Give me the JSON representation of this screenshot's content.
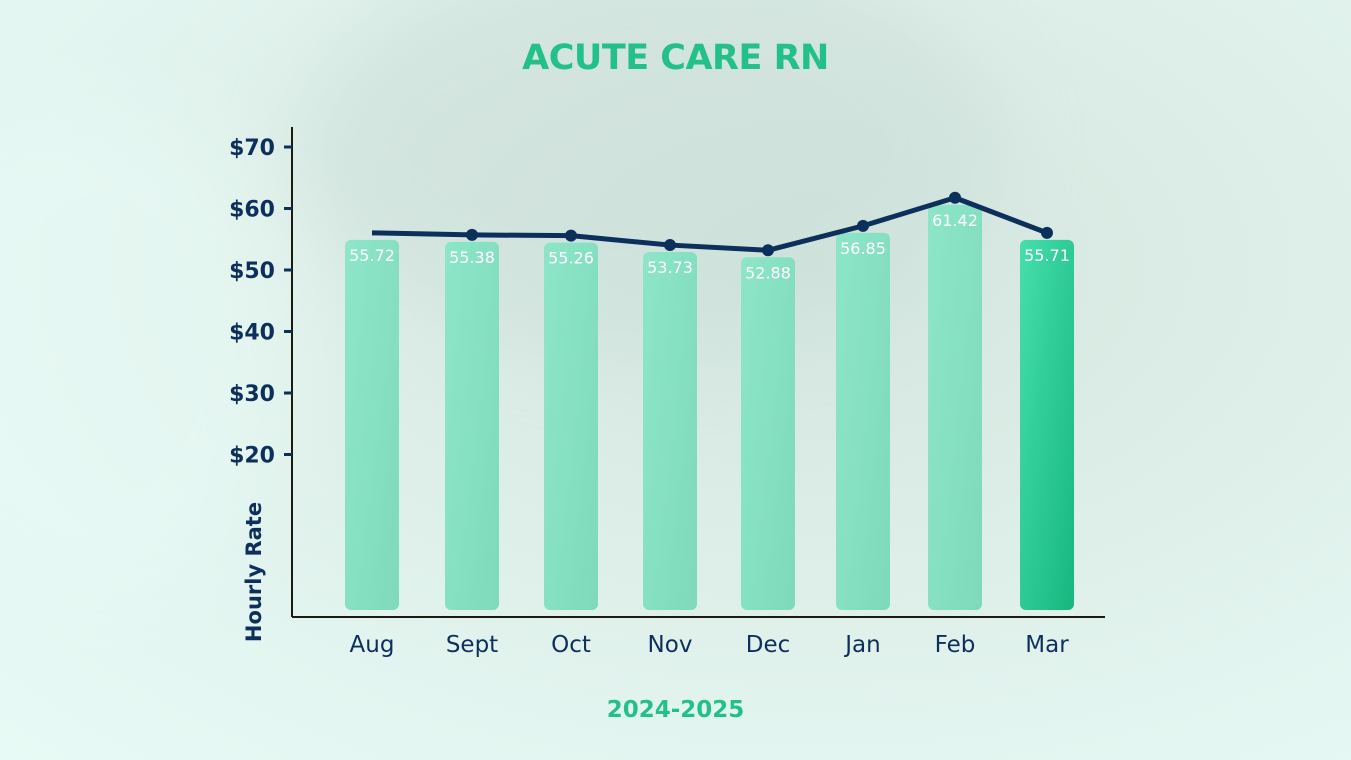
{
  "chart_data": {
    "type": "bar",
    "title": "ACUTE CARE RN",
    "xlabel": "2024-2025",
    "ylabel": "Hourly Rate",
    "categories": [
      "Aug",
      "Sept",
      "Oct",
      "Nov",
      "Dec",
      "Jan",
      "Feb",
      "Mar"
    ],
    "values": [
      55.72,
      55.38,
      55.26,
      53.73,
      52.88,
      56.85,
      61.42,
      55.71
    ],
    "overlay_line": true,
    "y_ticks": [
      "$20",
      "$30",
      "$40",
      "$50",
      "$60",
      "$70"
    ],
    "y_tick_values": [
      20,
      30,
      40,
      50,
      60,
      70
    ],
    "grid": false,
    "colors": {
      "title": "#23c08a",
      "bar": "#7fe0c0",
      "bar_highlight": "#22c48d",
      "line": "#0d2f5c",
      "axis_text": "#0d2f5c",
      "data_label": "#ffffff"
    }
  }
}
